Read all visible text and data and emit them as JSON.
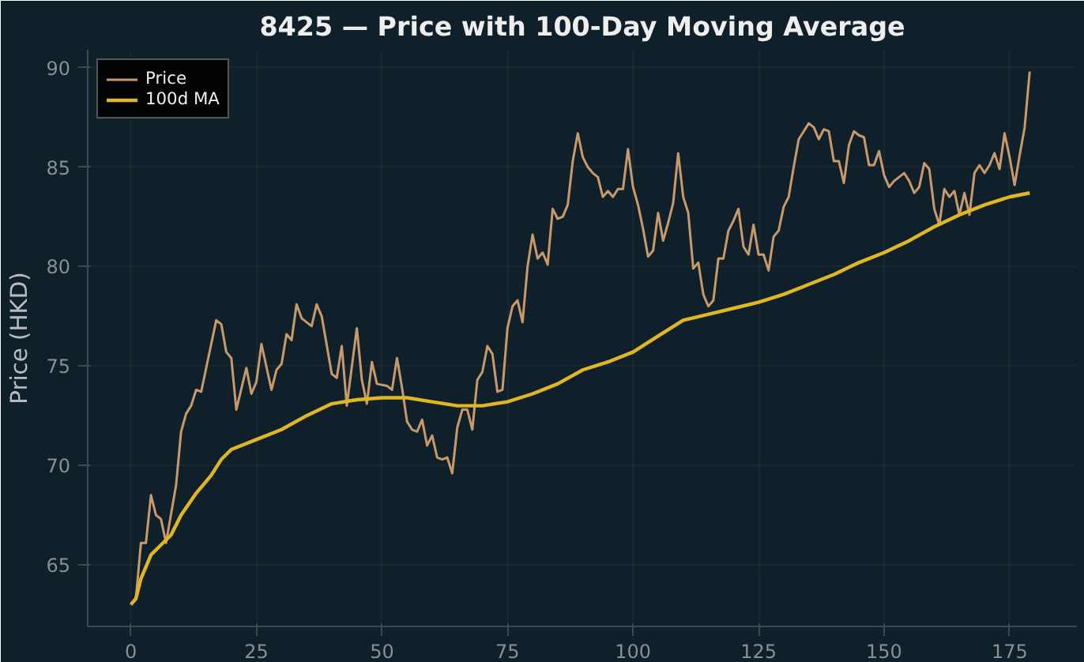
{
  "chart_data": {
    "type": "line",
    "title": "8425 — Price with 100-Day Moving Average",
    "ylabel": "Price (HKD)",
    "xlim": [
      -8.6,
      188.4
    ],
    "xticks": [
      0,
      25,
      50,
      75,
      100,
      125,
      150,
      175
    ],
    "ylim": [
      61.9,
      90.9
    ],
    "yticks": [
      65,
      70,
      75,
      80,
      85,
      90
    ],
    "grid": true,
    "legend": "top left",
    "series": [
      {
        "name": "Price",
        "color": "#c8996a",
        "x": [
          0,
          1,
          2,
          3,
          4,
          5,
          6,
          7,
          9,
          10,
          11,
          12,
          13,
          14,
          15,
          17,
          18,
          19,
          20,
          21,
          23,
          24,
          25,
          26,
          28,
          29,
          30,
          31,
          32,
          33,
          34,
          36,
          37,
          38,
          40,
          41,
          42,
          43,
          45,
          46,
          47,
          48,
          49,
          51,
          52,
          53,
          54,
          55,
          56,
          57,
          58,
          59,
          60,
          61,
          62,
          63,
          64,
          65,
          66,
          67,
          68,
          69,
          70,
          71,
          72,
          73,
          74,
          75,
          76,
          77,
          78,
          79,
          80,
          81,
          82,
          83,
          84,
          85,
          86,
          87,
          88,
          89,
          90,
          91,
          92,
          93,
          94,
          95,
          96,
          97,
          98,
          99,
          100,
          101,
          102,
          103,
          104,
          105,
          106,
          107,
          108,
          109,
          110,
          111,
          112,
          113,
          114,
          115,
          116,
          117,
          118,
          119,
          120,
          121,
          122,
          123,
          124,
          125,
          126,
          127,
          128,
          129,
          130,
          131,
          132,
          133,
          134,
          135,
          136,
          137,
          138,
          139,
          140,
          141,
          142,
          143,
          144,
          145,
          146,
          147,
          148,
          149,
          150,
          151,
          152,
          153,
          154,
          155,
          156,
          157,
          158,
          159,
          160,
          161,
          162,
          163,
          164,
          165,
          166,
          167,
          168,
          169,
          170,
          171,
          172,
          173,
          174,
          175,
          176,
          177,
          178,
          179
        ],
        "values": [
          63.0,
          63.3,
          66.1,
          66.1,
          68.5,
          67.5,
          67.3,
          66.1,
          69.0,
          71.7,
          72.6,
          73.0,
          73.8,
          73.7,
          74.9,
          77.3,
          77.1,
          75.7,
          75.4,
          72.8,
          74.9,
          73.6,
          74.2,
          76.1,
          73.8,
          74.8,
          75.1,
          76.6,
          76.3,
          78.1,
          77.4,
          77.0,
          78.1,
          77.5,
          74.6,
          74.4,
          76.0,
          73.0,
          76.9,
          74.3,
          73.1,
          75.2,
          74.1,
          74.0,
          73.8,
          75.4,
          73.9,
          72.2,
          71.8,
          71.7,
          72.3,
          71.0,
          71.5,
          70.4,
          70.3,
          70.4,
          69.6,
          71.9,
          72.8,
          72.8,
          71.8,
          74.3,
          74.7,
          76.0,
          75.6,
          73.7,
          73.8,
          76.9,
          78.0,
          78.3,
          77.2,
          80.0,
          81.6,
          80.4,
          80.7,
          80.1,
          82.9,
          82.4,
          82.5,
          83.1,
          85.3,
          86.7,
          85.5,
          85.0,
          84.7,
          84.5,
          83.5,
          83.8,
          83.5,
          83.9,
          83.9,
          85.9,
          84.0,
          83.1,
          81.9,
          80.5,
          80.8,
          82.7,
          81.3,
          82.2,
          83.2,
          85.7,
          83.5,
          82.7,
          79.9,
          80.2,
          78.6,
          78.0,
          78.3,
          80.4,
          80.4,
          81.8,
          82.3,
          82.9,
          81.0,
          80.6,
          82.1,
          80.6,
          80.6,
          79.8,
          81.5,
          81.8,
          83.0,
          83.5,
          85.0,
          86.4,
          86.8,
          87.2,
          87.0,
          86.4,
          86.9,
          86.8,
          85.3,
          85.3,
          84.2,
          86.1,
          86.8,
          86.6,
          86.5,
          85.1,
          85.1,
          85.8,
          84.6,
          84.0,
          84.3,
          84.5,
          84.7,
          84.3,
          83.7,
          84.0,
          85.2,
          84.9,
          82.9,
          82.1,
          83.9,
          83.5,
          83.8,
          82.6,
          83.7,
          82.6,
          84.7,
          85.1,
          84.7,
          85.1,
          85.7,
          84.9,
          86.7,
          85.5,
          84.1,
          85.6,
          87.0,
          89.8
        ]
      },
      {
        "name": "100d MA",
        "color": "#e0b720",
        "x": [
          0,
          1,
          2,
          4,
          6,
          8,
          10,
          13,
          16,
          18,
          20,
          25,
          30,
          35,
          40,
          45,
          50,
          55,
          60,
          65,
          70,
          75,
          80,
          85,
          90,
          95,
          100,
          105,
          110,
          115,
          120,
          125,
          130,
          135,
          140,
          145,
          150,
          155,
          160,
          165,
          170,
          175,
          179
        ],
        "values": [
          63.0,
          63.3,
          64.3,
          65.5,
          66.0,
          66.5,
          67.5,
          68.6,
          69.5,
          70.3,
          70.8,
          71.3,
          71.8,
          72.5,
          73.1,
          73.3,
          73.4,
          73.4,
          73.2,
          73.0,
          73.0,
          73.2,
          73.6,
          74.1,
          74.8,
          75.2,
          75.7,
          76.5,
          77.3,
          77.6,
          77.9,
          78.2,
          78.6,
          79.1,
          79.6,
          80.2,
          80.7,
          81.3,
          82.0,
          82.6,
          83.1,
          83.5,
          83.7
        ]
      }
    ]
  }
}
